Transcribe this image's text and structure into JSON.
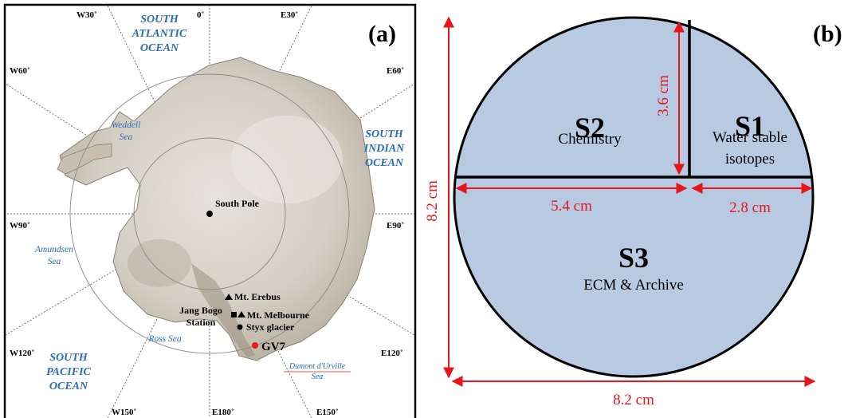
{
  "panel_a": {
    "label": "(a)",
    "meridians": {
      "w30": "W30˚",
      "zero": "0˚",
      "e30": "E30˚",
      "w60": "W60˚",
      "e60": "E60˚",
      "w90": "W90˚",
      "e90": "E90˚",
      "w120": "W120˚",
      "e120": "E120˚",
      "w150": "W150˚",
      "e180": "E180˚",
      "e150": "E150˚"
    },
    "oceans": {
      "south_atlantic_1": "SOUTH",
      "south_atlantic_2": "ATLANTIC",
      "south_atlantic_3": "OCEAN",
      "south_indian_1": "SOUTH",
      "south_indian_2": "INDIAN",
      "south_indian_3": "OCEAN",
      "south_pacific_1": "SOUTH",
      "south_pacific_2": "PACIFIC",
      "south_pacific_3": "OCEAN"
    },
    "seas": {
      "weddell_1": "Weddell",
      "weddell_2": "Sea",
      "amundsen_1": "Amundsen",
      "amundsen_2": "Sea",
      "ross": "Ross Sea",
      "dumont_1": "Dumont d'Urville",
      "dumont_2": "Sea"
    },
    "places": {
      "south_pole": "South Pole",
      "mt_erebus": "Mt. Erebus",
      "jang_bogo_1": "Jang Bogo",
      "jang_bogo_2": "Station",
      "mt_melbourne": "Mt. Melbourne",
      "styx_glacier": "Styx glacier",
      "gv7": "GV7"
    },
    "colors": {
      "ocean_label": "#2b6cb5",
      "gv7_marker": "#e0201b",
      "gridline": "#666666"
    }
  },
  "panel_b": {
    "label": "(b)",
    "sections": {
      "s1_title": "S1",
      "s1_line1": "Water stable",
      "s1_line2": "isotopes",
      "s2_title": "S2",
      "s2_desc": "Chemistry",
      "s3_title": "S3",
      "s3_desc": "ECM & Archive"
    },
    "dimensions": {
      "height": "8.2 cm",
      "width": "8.2 cm",
      "s2_height": "3.6 cm",
      "s2_width": "5.4 cm",
      "s1_width": "2.8 cm"
    },
    "colors": {
      "fill": "#b8c9e2",
      "arrow": "#e8161b",
      "outline": "#000000"
    }
  }
}
